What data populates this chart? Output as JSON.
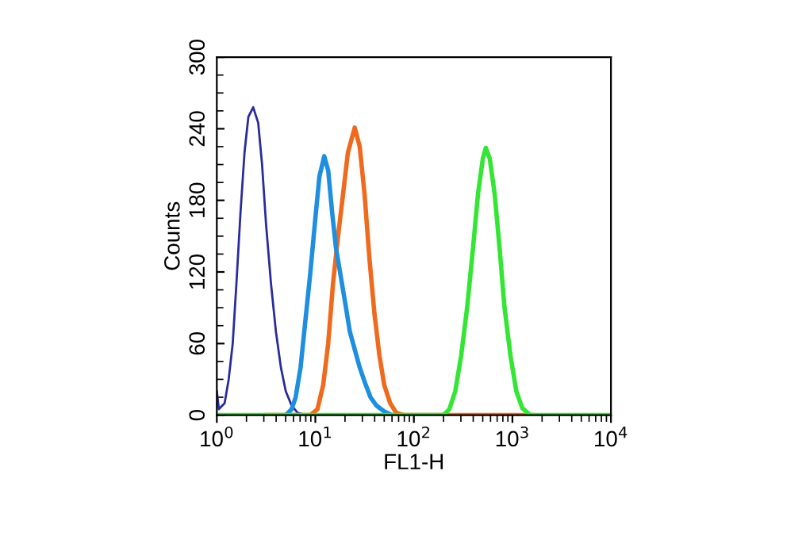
{
  "chart_data": {
    "type": "line",
    "xlabel": "FL1-H",
    "ylabel": "Counts",
    "log": "x",
    "xlim": [
      1,
      10000
    ],
    "ylim": [
      0,
      300
    ],
    "xticks": [
      {
        "value": 1,
        "label": "10$^{0}$"
      },
      {
        "value": 10,
        "label": "10$^{1}$"
      },
      {
        "value": 100,
        "label": "10$^{2}$"
      },
      {
        "value": 1000,
        "label": "10$^{3}$"
      },
      {
        "value": 10000,
        "label": "10$^{4}$"
      }
    ],
    "yticks": [
      0,
      60,
      120,
      180,
      240,
      300
    ],
    "grid": false,
    "legend": false,
    "marker": "none",
    "line_style": "solid",
    "series": [
      {
        "color": "#2a2aa0",
        "x": [
          1,
          1.05,
          1.2,
          1.32,
          1.45,
          1.58,
          1.74,
          1.91,
          2.09,
          2.34,
          2.63,
          2.88,
          3.16,
          3.55,
          3.98,
          4.47,
          5.01,
          5.75,
          6.61,
          7.94
        ],
        "values": [
          20,
          5,
          10,
          30,
          60,
          110,
          170,
          220,
          250,
          258,
          245,
          210,
          160,
          110,
          70,
          40,
          20,
          8,
          2,
          0
        ]
      },
      {
        "color": "#f06a1e",
        "x": [
          3.16,
          8.91,
          10.5,
          12.0,
          13.5,
          15.1,
          17.0,
          19.1,
          21.4,
          25.1,
          28.2,
          31.6,
          35.5,
          39.8,
          44.7,
          50.1,
          57.5,
          66.1,
          79.4,
          1585
        ],
        "values": [
          0,
          0,
          5,
          25,
          60,
          110,
          150,
          185,
          220,
          241,
          225,
          185,
          130,
          85,
          50,
          25,
          10,
          2,
          0,
          0
        ]
      },
      {
        "color": "#1e8fe0",
        "x": [
          5.01,
          5.75,
          6.31,
          7.08,
          7.94,
          8.91,
          10,
          11.0,
          12.3,
          13.5,
          14.8,
          16.2,
          17.8,
          20.0,
          22.4,
          25.1,
          28.2,
          31.6,
          36.3,
          41.7,
          50.1,
          60.3
        ],
        "values": [
          0,
          5,
          15,
          40,
          80,
          120,
          165,
          200,
          217,
          205,
          170,
          140,
          120,
          95,
          70,
          55,
          40,
          28,
          15,
          8,
          3,
          0
        ]
      },
      {
        "color": "#33e633",
        "x": [
          1,
          200,
          229,
          263,
          302,
          347,
          398,
          447,
          501,
          537,
          589,
          661,
          741,
          832,
          955,
          1096,
          1259,
          1514,
          10000
        ],
        "values": [
          0,
          0,
          5,
          20,
          50,
          90,
          140,
          185,
          215,
          224,
          215,
          185,
          140,
          90,
          50,
          20,
          6,
          0,
          0
        ]
      }
    ]
  }
}
